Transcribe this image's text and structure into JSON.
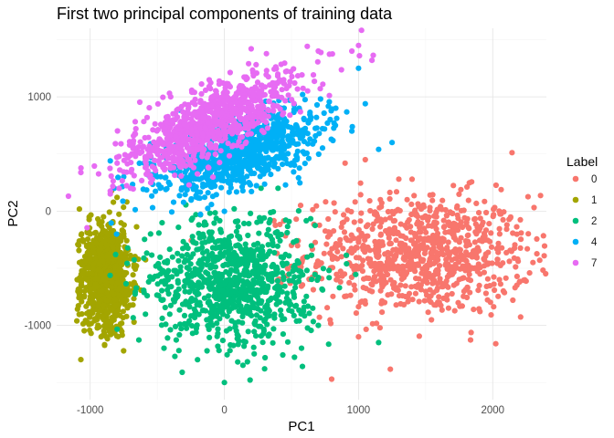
{
  "chart_data": {
    "type": "scatter",
    "title": "First two principal components of training data",
    "xlabel": "PC1",
    "ylabel": "PC2",
    "xlim": [
      -1250,
      2400
    ],
    "ylim": [
      -1650,
      1600
    ],
    "x_ticks": [
      -1000,
      0,
      1000,
      2000
    ],
    "y_ticks": [
      -1000,
      0,
      1000
    ],
    "x_tick_labels": [
      "-1000",
      "0",
      "1000",
      "2000"
    ],
    "y_tick_labels": [
      "-1000",
      "0",
      "1000"
    ],
    "grid": true,
    "legend": {
      "title": "Label",
      "placement": "right"
    },
    "series": [
      {
        "name": "0",
        "color": "#F8766D",
        "center": [
          1450,
          -380
        ],
        "spread": [
          420,
          260
        ],
        "points": [
          [
            2350,
            -430
          ],
          [
            2300,
            -450
          ],
          [
            2200,
            -620
          ],
          [
            2150,
            -780
          ],
          [
            2050,
            -600
          ],
          [
            1950,
            -720
          ],
          [
            1600,
            -300
          ],
          [
            1300,
            280
          ],
          [
            1050,
            450
          ],
          [
            900,
            420
          ],
          [
            1000,
            -1100
          ],
          [
            500,
            -300
          ]
        ]
      },
      {
        "name": "1",
        "color": "#A3A500",
        "center": [
          -880,
          -560
        ],
        "spread": [
          90,
          230
        ],
        "points": [
          [
            -1080,
            -450
          ],
          [
            -1000,
            -700
          ],
          [
            -900,
            -950
          ],
          [
            -800,
            120
          ],
          [
            -750,
            -200
          ],
          [
            -850,
            -1050
          ]
        ]
      },
      {
        "name": "2",
        "color": "#00BF7D",
        "center": [
          50,
          -620
        ],
        "spread": [
          300,
          260
        ],
        "points": [
          [
            -450,
            -1200
          ],
          [
            -200,
            -1300
          ],
          [
            0,
            -1500
          ],
          [
            300,
            -1380
          ],
          [
            100,
            -1320
          ],
          [
            700,
            -1000
          ],
          [
            1150,
            -1150
          ],
          [
            -550,
            -200
          ],
          [
            400,
            200
          ]
        ]
      },
      {
        "name": "4",
        "color": "#00B0F6",
        "center": [
          120,
          520
        ],
        "spread": [
          300,
          220
        ],
        "points": [
          [
            -850,
            440
          ],
          [
            -820,
            200
          ],
          [
            -750,
            300
          ],
          [
            1150,
            540
          ],
          [
            1050,
            940
          ],
          [
            1250,
            600
          ],
          [
            1000,
            1250
          ],
          [
            950,
            700
          ]
        ]
      },
      {
        "name": "7",
        "color": "#E76BF3",
        "center": [
          -100,
          780
        ],
        "spread": [
          320,
          250
        ],
        "points": [
          [
            -850,
            150
          ],
          [
            -700,
            200
          ],
          [
            200,
            1420
          ],
          [
            700,
            1400
          ],
          [
            1000,
            1450
          ],
          [
            1100,
            1320
          ],
          [
            950,
            1400
          ],
          [
            -400,
            1000
          ]
        ]
      }
    ]
  }
}
